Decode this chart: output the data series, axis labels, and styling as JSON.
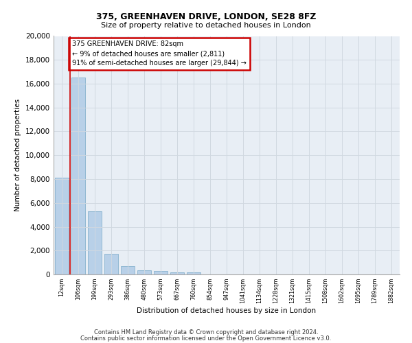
{
  "title1": "375, GREENHAVEN DRIVE, LONDON, SE28 8FZ",
  "title2": "Size of property relative to detached houses in London",
  "xlabel": "Distribution of detached houses by size in London",
  "ylabel": "Number of detached properties",
  "categories": [
    "12sqm",
    "106sqm",
    "199sqm",
    "293sqm",
    "386sqm",
    "480sqm",
    "573sqm",
    "667sqm",
    "760sqm",
    "854sqm",
    "947sqm",
    "1041sqm",
    "1134sqm",
    "1228sqm",
    "1321sqm",
    "1415sqm",
    "1508sqm",
    "1602sqm",
    "1695sqm",
    "1789sqm",
    "1882sqm"
  ],
  "values": [
    8100,
    16500,
    5300,
    1750,
    680,
    370,
    280,
    200,
    160,
    0,
    0,
    0,
    0,
    0,
    0,
    0,
    0,
    0,
    0,
    0,
    0
  ],
  "bar_color": "#b8d0e8",
  "bar_edge_color": "#7aaac8",
  "annotation_title": "375 GREENHAVEN DRIVE: 82sqm",
  "annotation_line1": "← 9% of detached houses are smaller (2,811)",
  "annotation_line2": "91% of semi-detached houses are larger (29,844) →",
  "annotation_box_color": "#ffffff",
  "annotation_box_edge": "#cc0000",
  "ylim": [
    0,
    20000
  ],
  "yticks": [
    0,
    2000,
    4000,
    6000,
    8000,
    10000,
    12000,
    14000,
    16000,
    18000,
    20000
  ],
  "grid_color": "#d0d8e0",
  "bg_color": "#e8eef5",
  "footer1": "Contains HM Land Registry data © Crown copyright and database right 2024.",
  "footer2": "Contains public sector information licensed under the Open Government Licence v3.0."
}
